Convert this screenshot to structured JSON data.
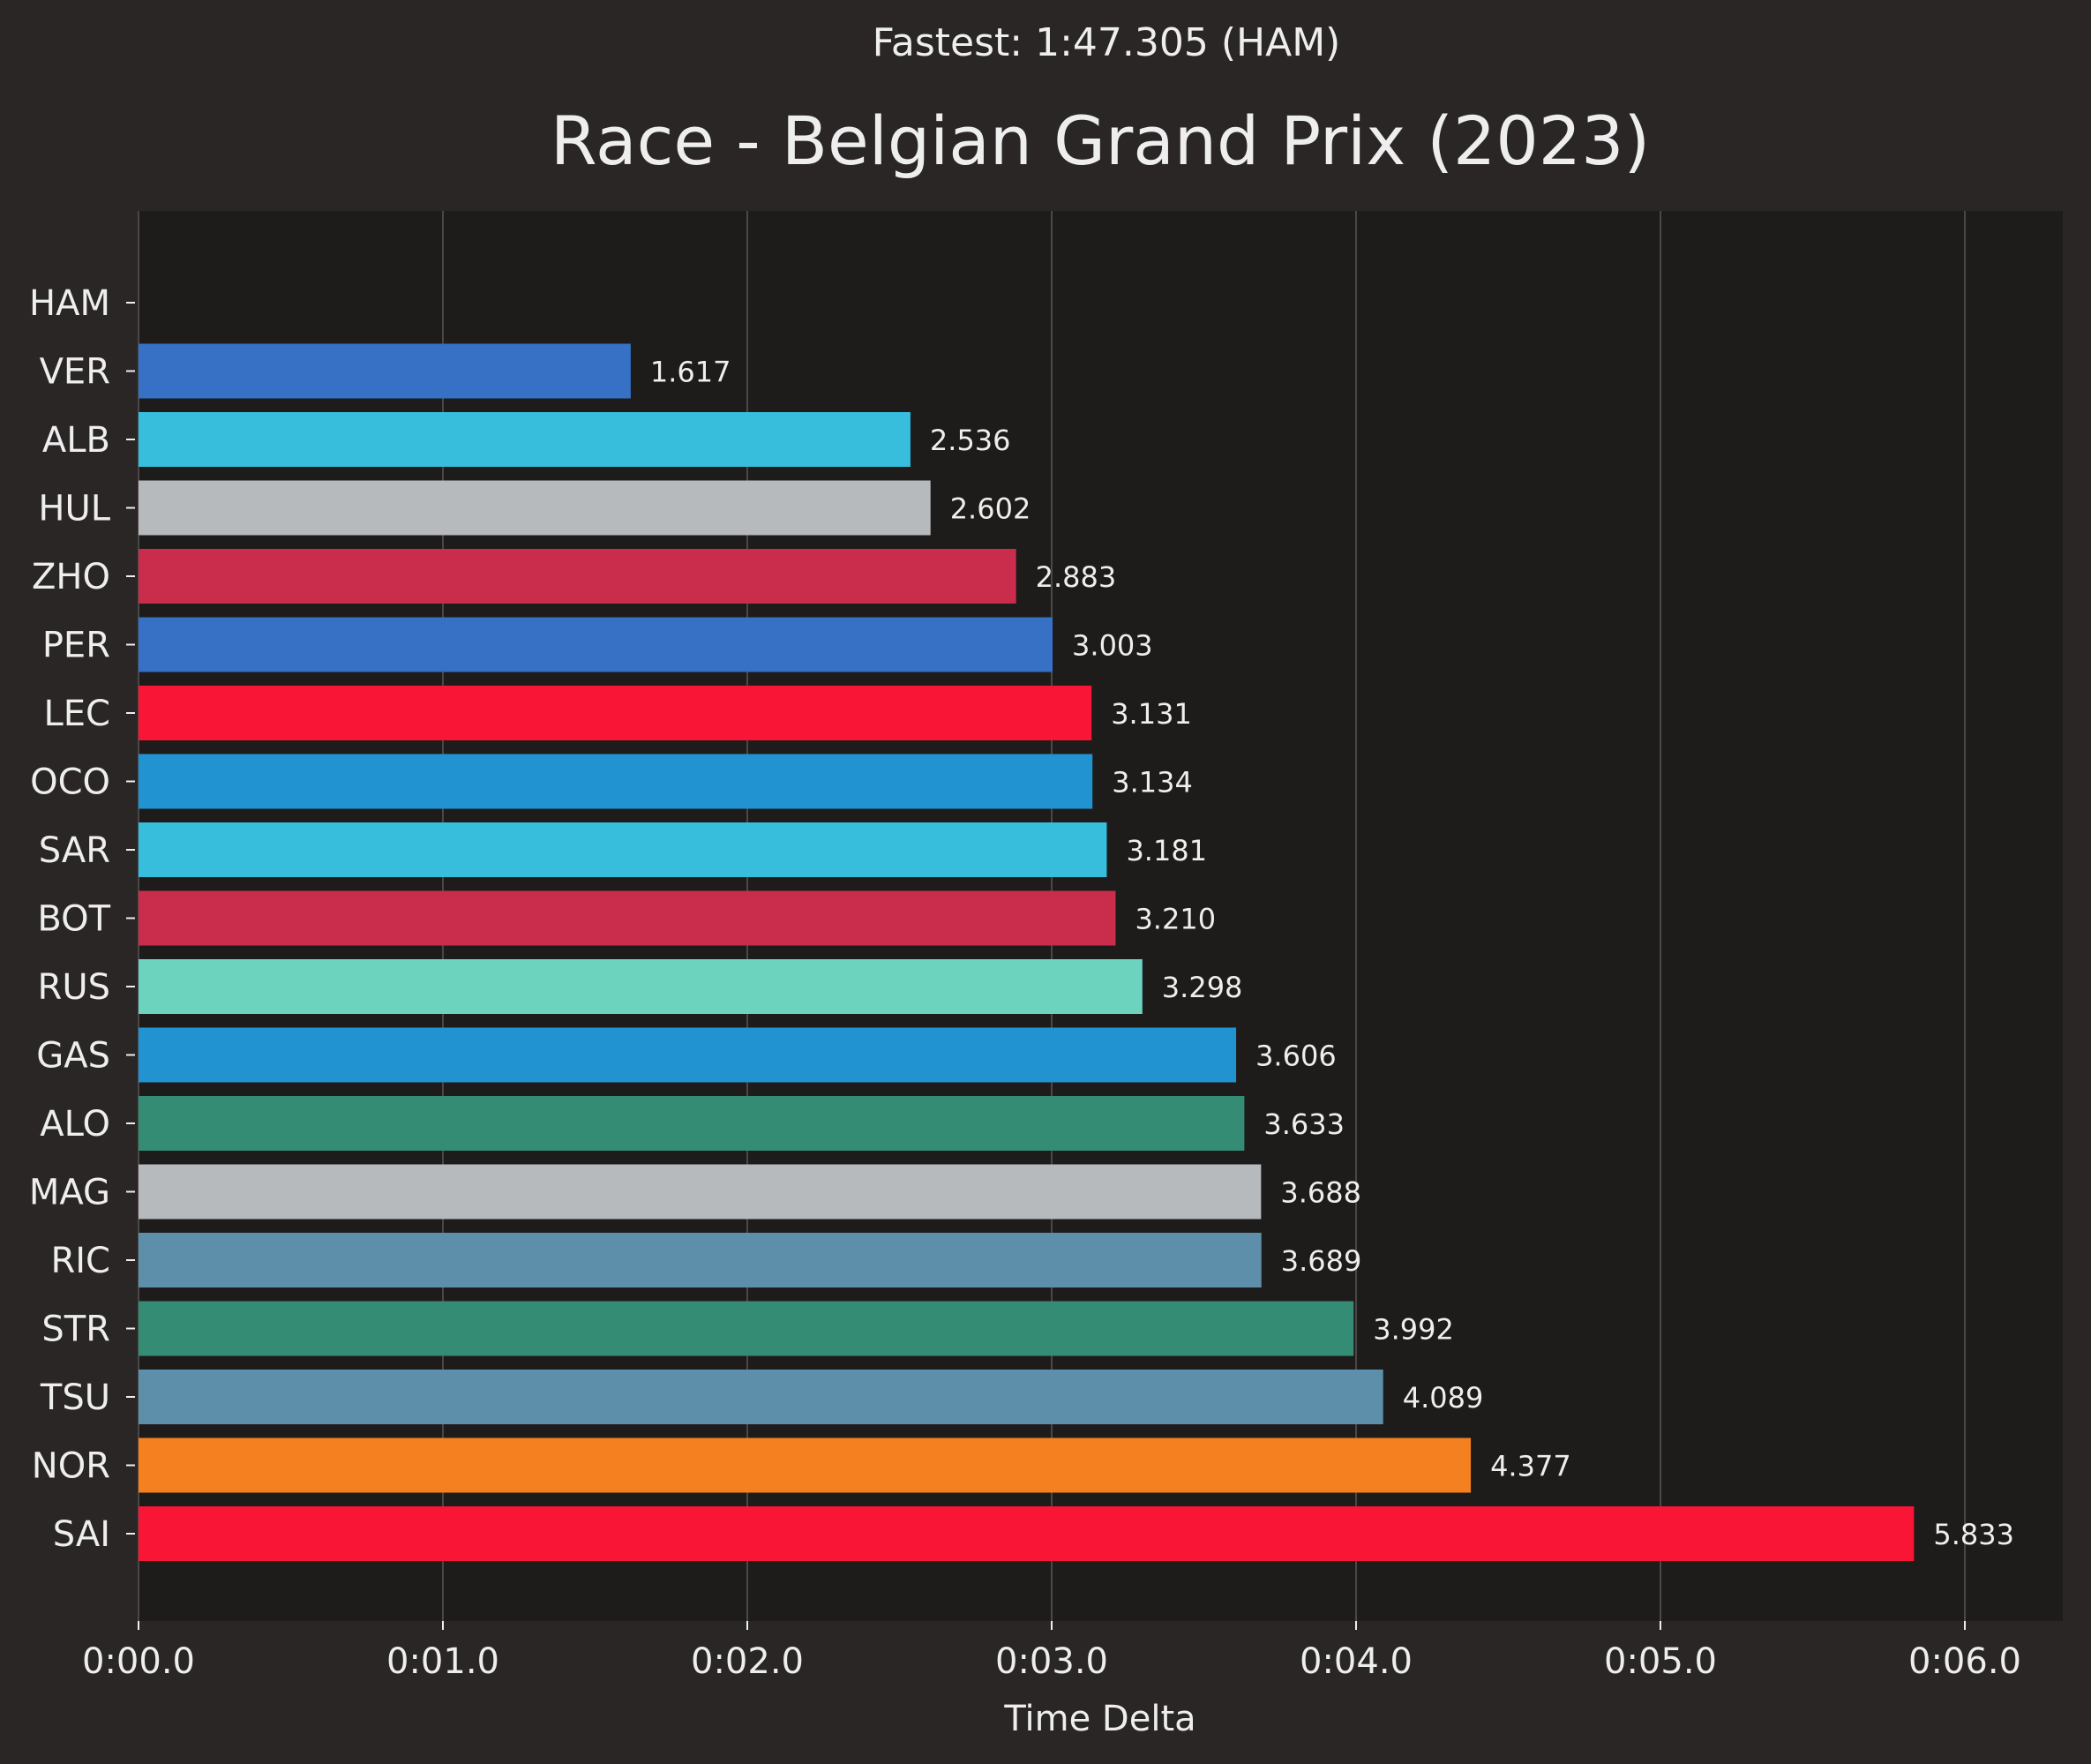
{
  "chart_data": {
    "type": "bar",
    "orientation": "horizontal",
    "subtitle": "Fastest: 1:47.305 (HAM)",
    "title": "Race - Belgian Grand Prix (2023)",
    "xlabel": "Time Delta",
    "ylabel": "",
    "xlim": [
      0,
      6.33
    ],
    "x_ticks": [
      0,
      1,
      2,
      3,
      4,
      5,
      6
    ],
    "x_tick_labels": [
      "0:00.0",
      "0:01.0",
      "0:02.0",
      "0:03.0",
      "0:04.0",
      "0:05.0",
      "0:06.0"
    ],
    "grid": "vertical",
    "categories": [
      "HAM",
      "VER",
      "ALB",
      "HUL",
      "ZHO",
      "PER",
      "LEC",
      "OCO",
      "SAR",
      "BOT",
      "RUS",
      "GAS",
      "ALO",
      "MAG",
      "RIC",
      "STR",
      "TSU",
      "NOR",
      "SAI"
    ],
    "values": [
      0,
      1.617,
      2.536,
      2.602,
      2.883,
      3.003,
      3.131,
      3.134,
      3.181,
      3.21,
      3.298,
      3.606,
      3.633,
      3.688,
      3.689,
      3.992,
      4.089,
      4.377,
      5.833
    ],
    "value_labels": [
      "",
      "1.617",
      "2.536",
      "2.602",
      "2.883",
      "3.003",
      "3.131",
      "3.134",
      "3.181",
      "3.210",
      "3.298",
      "3.606",
      "3.633",
      "3.688",
      "3.689",
      "3.992",
      "4.089",
      "4.377",
      "5.833"
    ],
    "colors": [
      "#00d2be",
      "#3671c6",
      "#37bedd",
      "#b6babd",
      "#c92d4b",
      "#3671c6",
      "#f91536",
      "#2293d1",
      "#37bedd",
      "#c92d4b",
      "#6cd3bf",
      "#2293d1",
      "#358c75",
      "#b6babd",
      "#5e8faa",
      "#358c75",
      "#5e8faa",
      "#f58020",
      "#f91536"
    ]
  },
  "theme": {
    "figure_bg": "#292625",
    "plot_bg": "#1e1c1b",
    "grid_color": "#4a4746",
    "text_color": "#eeeeee"
  }
}
